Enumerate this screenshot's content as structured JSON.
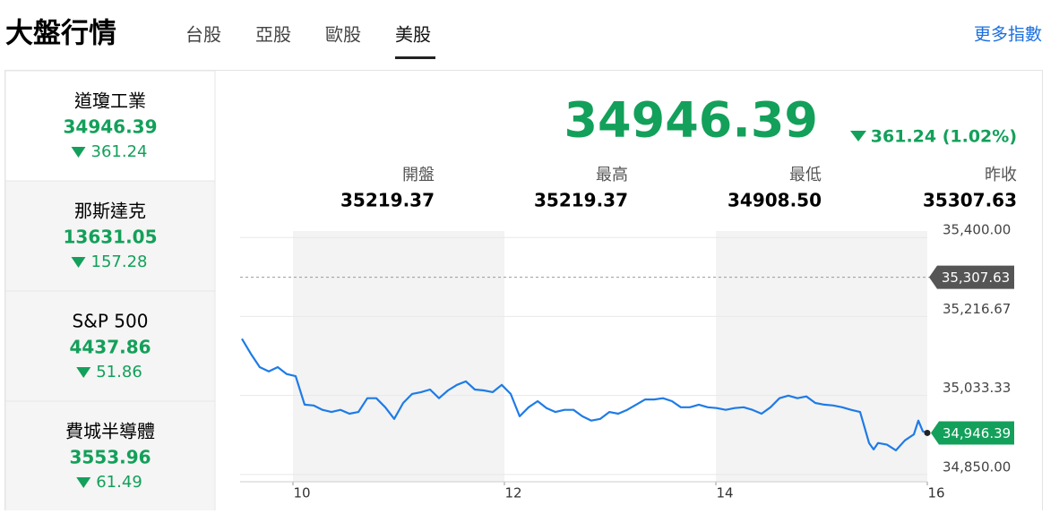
{
  "header": {
    "title": "大盤行情",
    "tabs": [
      "台股",
      "亞股",
      "歐股",
      "美股"
    ],
    "selected_tab": 3,
    "more_link": "更多指數"
  },
  "indices": {
    "selected": 0,
    "items": [
      {
        "name": "道瓊工業",
        "value": "34946.39",
        "change": "361.24"
      },
      {
        "name": "那斯達克",
        "value": "13631.05",
        "change": "157.28"
      },
      {
        "name": "S&P 500",
        "value": "4437.86",
        "change": "51.86"
      },
      {
        "name": "費城半導體",
        "value": "3553.96",
        "change": "61.49"
      }
    ]
  },
  "quote": {
    "value": "34946.39",
    "change": "361.24 (1.02%)",
    "stats": [
      {
        "label": "開盤",
        "value": "35219.37"
      },
      {
        "label": "最高",
        "value": "35219.37"
      },
      {
        "label": "最低",
        "value": "34908.50"
      },
      {
        "label": "昨收",
        "value": "35307.63"
      }
    ]
  },
  "chart": {
    "type": "line",
    "color": "#1e7be6",
    "grid": true,
    "x": [
      9.517,
      9.602,
      9.686,
      9.771,
      9.856,
      9.941,
      10.025,
      10.11,
      10.195,
      10.28,
      10.364,
      10.449,
      10.534,
      10.619,
      10.703,
      10.788,
      10.873,
      10.958,
      11.042,
      11.127,
      11.212,
      11.297,
      11.381,
      11.466,
      11.551,
      11.636,
      11.72,
      11.805,
      11.89,
      11.975,
      12.059,
      12.144,
      12.229,
      12.314,
      12.398,
      12.483,
      12.568,
      12.653,
      12.737,
      12.822,
      12.907,
      12.992,
      13.076,
      13.161,
      13.246,
      13.331,
      13.415,
      13.5,
      13.585,
      13.669,
      13.754,
      13.839,
      13.924,
      14.008,
      14.093,
      14.178,
      14.263,
      14.347,
      14.432,
      14.517,
      14.602,
      14.686,
      14.771,
      14.856,
      14.941,
      15.025,
      15.11,
      15.195,
      15.28,
      15.364,
      15.449,
      15.492,
      15.534,
      15.619,
      15.703,
      15.788,
      15.873,
      15.915,
      15.958,
      16.0
    ],
    "values": [
      35165,
      35130,
      35099,
      35089,
      35099,
      35083,
      35078,
      35012,
      35010,
      35000,
      34995,
      35000,
      34991,
      34995,
      35027,
      35027,
      35006,
      34979,
      35016,
      35037,
      35041,
      35047,
      35027,
      35045,
      35058,
      35066,
      35047,
      35045,
      35041,
      35058,
      35037,
      34985,
      35006,
      35020,
      35004,
      34995,
      35000,
      35000,
      34985,
      34975,
      34979,
      34995,
      34991,
      35000,
      35012,
      35024,
      35024,
      35027,
      35020,
      35006,
      35006,
      35012,
      35006,
      35004,
      35000,
      35004,
      35006,
      35000,
      34991,
      35006,
      35027,
      35033,
      35027,
      35031,
      35016,
      35012,
      35010,
      35006,
      35000,
      34995,
      34923,
      34908,
      34923,
      34919,
      34906,
      34929,
      34943,
      34975,
      34950,
      34946.39
    ],
    "xlim": [
      9.5,
      16
    ],
    "xticks": [
      10,
      12,
      14,
      16
    ],
    "ylim": [
      34833,
      35415
    ],
    "yticks": [
      {
        "value": 34850,
        "label": "34,850.00"
      },
      {
        "value": 35033.33,
        "label": "35,033.33"
      },
      {
        "value": 35216.67,
        "label": "35,216.67"
      },
      {
        "value": 35400,
        "label": "35,400.00"
      }
    ],
    "reference": {
      "value": 35307.63,
      "label": "35,307.63"
    },
    "last_label": {
      "value": 34946.39,
      "label": "34,946.39"
    }
  }
}
